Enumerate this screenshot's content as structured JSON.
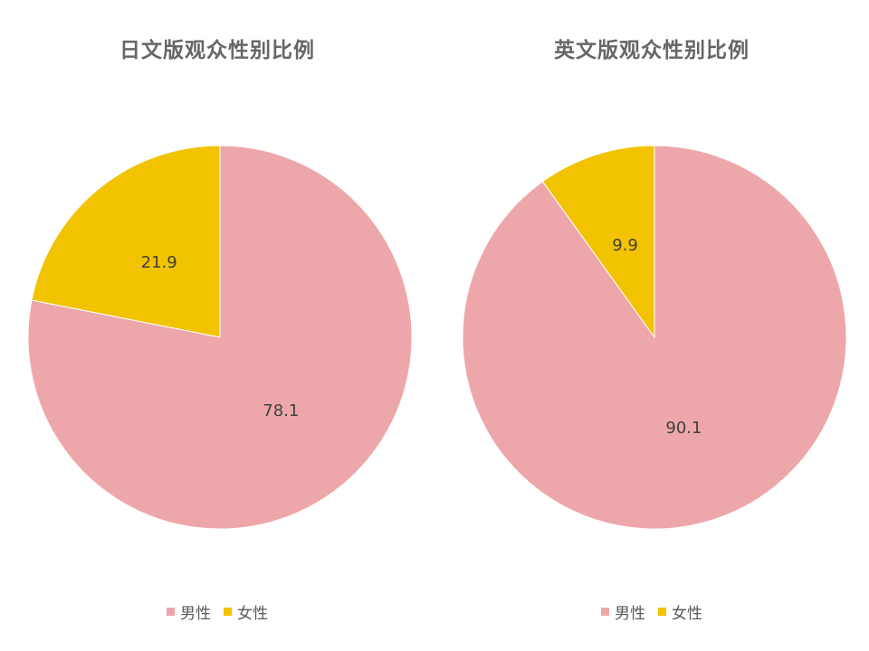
{
  "chart_data": [
    {
      "type": "pie",
      "title": "日文版观众性别比例",
      "categories": [
        "男性",
        "女性"
      ],
      "values": [
        78.1,
        21.9
      ],
      "colors": [
        "#EDA7AB",
        "#F2C300"
      ],
      "data_labels": [
        "78.1",
        "21.9"
      ],
      "legend_position": "bottom"
    },
    {
      "type": "pie",
      "title": "英文版观众性别比例",
      "categories": [
        "男性",
        "女性"
      ],
      "values": [
        90.1,
        9.9
      ],
      "colors": [
        "#EDA7AB",
        "#F2C300"
      ],
      "data_labels": [
        "90.1",
        "9.9"
      ],
      "legend_position": "bottom"
    }
  ]
}
